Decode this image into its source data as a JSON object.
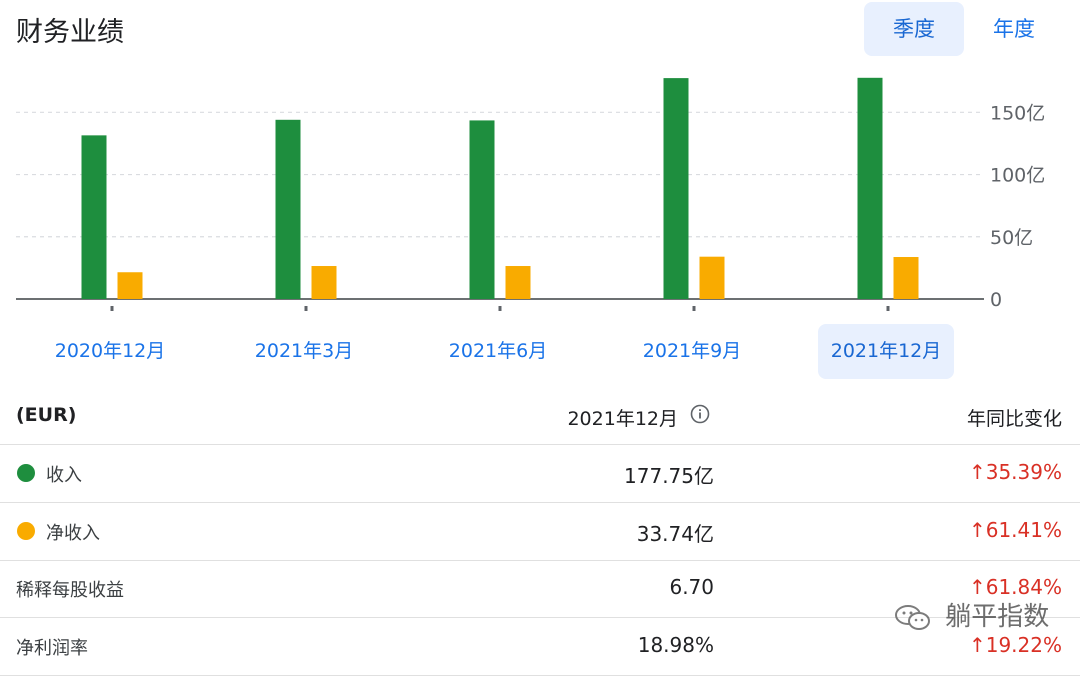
{
  "header": {
    "title": "财务业绩"
  },
  "tabs": [
    {
      "label": "季度",
      "selected": true
    },
    {
      "label": "年度",
      "selected": false
    }
  ],
  "chart_data": {
    "type": "bar",
    "categories": [
      "2020年12月",
      "2021年3月",
      "2021年6月",
      "2021年9月",
      "2021年12月"
    ],
    "selected_category": "2021年12月",
    "series": [
      {
        "key": "revenue",
        "color": "#1e8e3e",
        "values": [
          131.5,
          144.0,
          143.5,
          177.5,
          177.75
        ]
      },
      {
        "key": "net_income",
        "color": "#f9ab00",
        "values": [
          21.5,
          26.5,
          26.5,
          34.0,
          33.74
        ]
      }
    ],
    "y_ticks": [
      {
        "value": 0,
        "label": "0"
      },
      {
        "value": 50,
        "label": "50亿"
      },
      {
        "value": 100,
        "label": "100亿"
      },
      {
        "value": 150,
        "label": "150亿"
      }
    ],
    "ylim": [
      0,
      180
    ],
    "grid": true
  },
  "table": {
    "headers": {
      "currency": "(EUR)",
      "period": "2021年12月",
      "change": "年同比变化"
    },
    "rows": [
      {
        "label": "收入",
        "value": "177.75亿",
        "change": "↑35.39%",
        "dot_color": "#1e8e3e"
      },
      {
        "label": "净收入",
        "value": "33.74亿",
        "change": "↑61.41%",
        "dot_color": "#f9ab00"
      },
      {
        "label": "稀释每股收益",
        "value": "6.70",
        "change": "↑61.84%",
        "dot_color": ""
      },
      {
        "label": "净利润率",
        "value": "18.98%",
        "change": "↑19.22%",
        "dot_color": ""
      }
    ]
  },
  "watermark": {
    "text": "躺平指数"
  }
}
